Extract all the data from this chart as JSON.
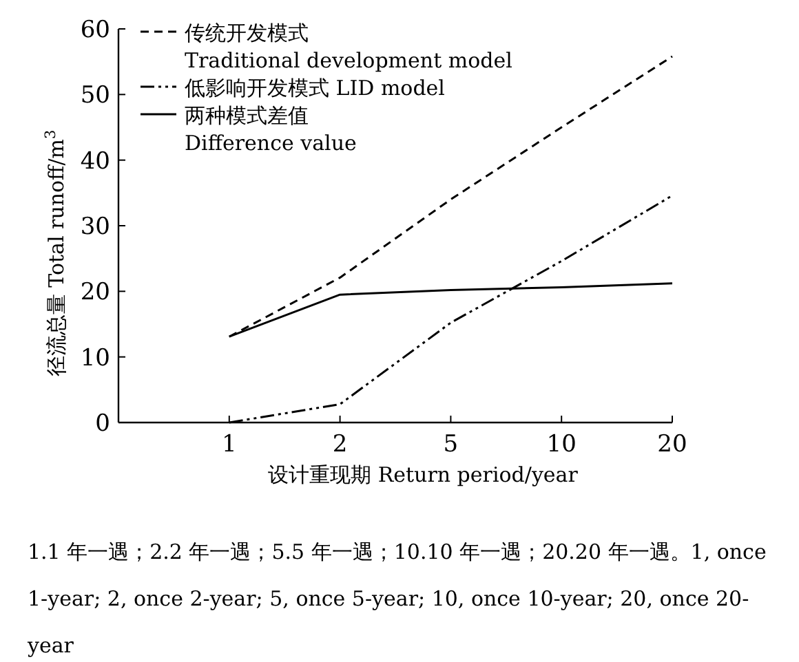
{
  "chart_data": {
    "type": "line",
    "xlabel": "设计重现期 Return period/year",
    "ylabel": "径流总量 Total runoff/m$^{3}$",
    "categories": [
      "1",
      "2",
      "5",
      "10",
      "20"
    ],
    "series": [
      {
        "name": "传统开发模式\nTraditional development model",
        "color": "#000000",
        "line_style": "dashed",
        "values": [
          13.1,
          22.1,
          34,
          45,
          55.8
        ]
      },
      {
        "name": "低影响开发模式 LID model",
        "color": "#000000",
        "line_style": "dashdot",
        "values": [
          0,
          2.8,
          15.2,
          24.6,
          34.6
        ]
      },
      {
        "name": "两种模式差值\nDifference value",
        "color": "#000000",
        "line_style": "solid",
        "values": [
          13.1,
          19.5,
          20.2,
          20.6,
          21.2
        ]
      }
    ],
    "ylim": [
      0,
      60
    ],
    "yticks": [
      0,
      10,
      20,
      30,
      40,
      50,
      60
    ],
    "grid": false,
    "legend": "top left",
    "marker": "none",
    "annotations": [
      "1.1 年一遇；2.2 年一遇；5.5 年一遇；10.10 年一遇；20.20 年一遇。1, once 1-year; 2, once 2-year; 5, once 5-year; 10, once 10-year; 20, once 20-year"
    ]
  }
}
